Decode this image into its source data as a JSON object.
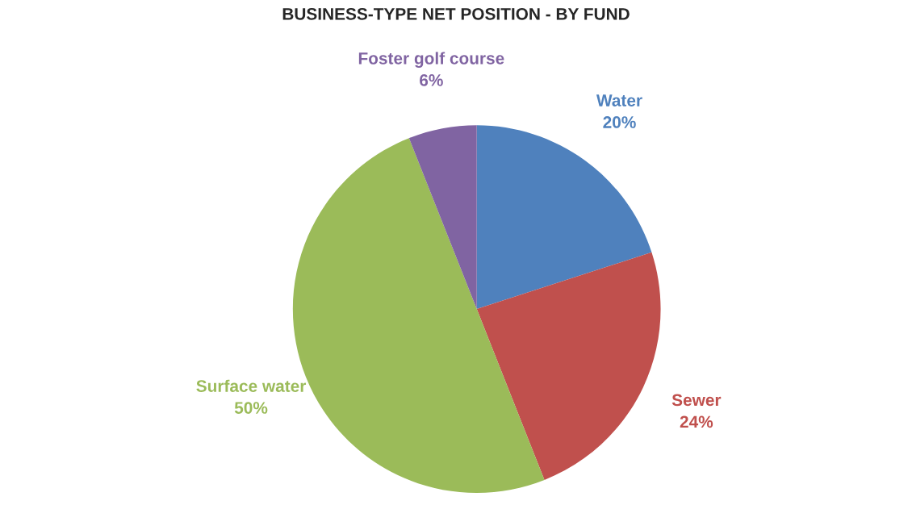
{
  "chart_data": {
    "type": "pie",
    "title": "BUSINESS-TYPE NET POSITION - BY FUND",
    "categories": [
      "Water",
      "Sewer",
      "Surface water",
      "Foster golf course"
    ],
    "values": [
      20,
      24,
      50,
      6
    ],
    "value_labels": [
      "20%",
      "24%",
      "50%",
      "6%"
    ],
    "colors": [
      "#4f81bd",
      "#c0504d",
      "#9bbb59",
      "#8064a2"
    ]
  }
}
